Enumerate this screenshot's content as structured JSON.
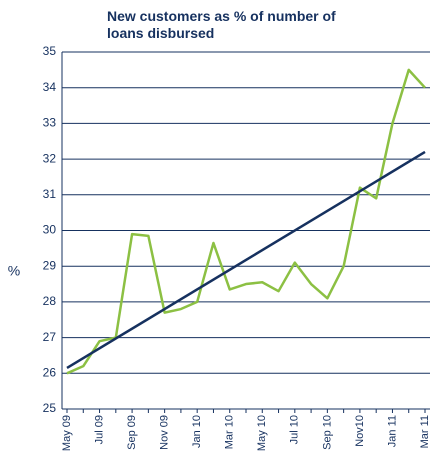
{
  "chart_data": {
    "type": "line",
    "title": "New customers as % of number of loans disbursed",
    "y_label": "%",
    "categories": [
      "May 09",
      null,
      "Jul 09",
      null,
      "Sep 09",
      null,
      "Nov 09",
      null,
      "Jan 10",
      null,
      "Mar 10",
      null,
      "May 10",
      null,
      "Jul 10",
      null,
      "Sep 10",
      null,
      "Nov10",
      null,
      "Jan 11",
      null,
      "Mar 11"
    ],
    "series": [
      {
        "color": "#8cc043",
        "values": [
          26.0,
          26.2,
          26.9,
          27.0,
          29.9,
          29.85,
          27.7,
          27.8,
          28.0,
          29.65,
          28.35,
          28.5,
          28.55,
          28.3,
          29.1,
          28.5,
          28.1,
          29.0,
          31.2,
          30.9,
          33.0,
          34.5,
          34.0
        ]
      }
    ],
    "trend": {
      "color": "#16315f",
      "values": [
        26.15,
        32.2
      ]
    },
    "ylim": [
      25,
      35
    ],
    "yticks": [
      25,
      26,
      27,
      28,
      29,
      30,
      31,
      32,
      33,
      34,
      35
    ],
    "grid": true
  }
}
